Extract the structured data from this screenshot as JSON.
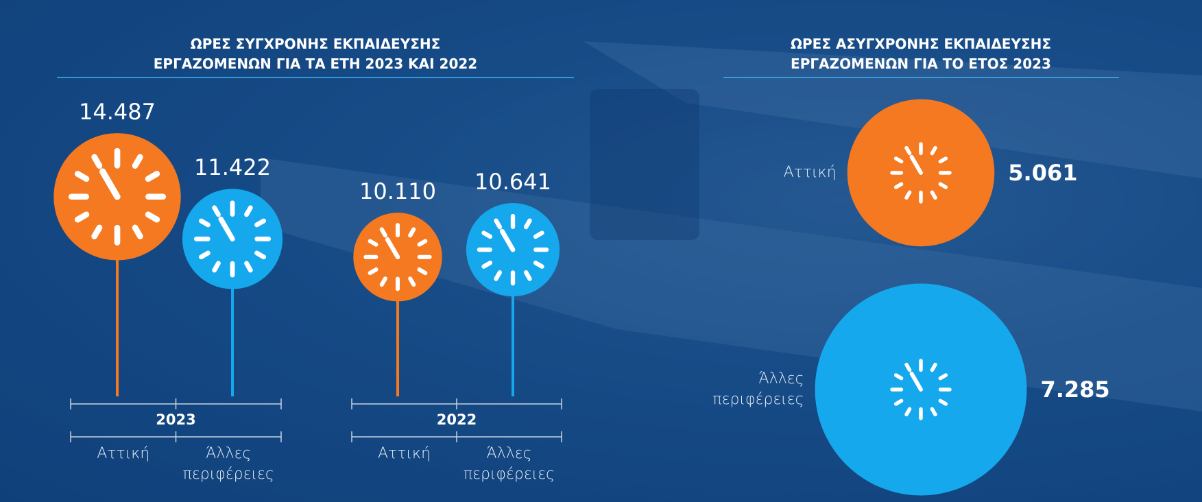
{
  "chart_data": [
    {
      "type": "lollipop",
      "title": [
        "ΩΡΕΣ ΣΥΓΧΡΟΝΗΣ ΕΚΠΑΙΔΕΥΣΗΣ",
        "ΕΡΓΑΖΟΜΕΝΩΝ ΓΙΑ ΤΑ ΕΤΗ 2023 ΚΑΙ 2022"
      ],
      "categories": [
        "2023",
        "2022"
      ],
      "series": [
        {
          "name": "Αττική",
          "color": "#f47920",
          "values": [
            14487,
            10110
          ],
          "value_labels": [
            "14.487",
            "10.110"
          ]
        },
        {
          "name": "Άλλες περιφέρειες",
          "color": "#16a8ec",
          "values": [
            11422,
            10641
          ],
          "value_labels": [
            "11.422",
            "10.641"
          ]
        }
      ]
    },
    {
      "type": "bubble",
      "title": [
        "ΩΡΕΣ ΑΣΥΓΧΡΟΝΗΣ ΕΚΠΑΙΔΕΥΣΗΣ",
        "ΕΡΓΑΖΟΜΕΝΩΝ ΓΙΑ ΤΟ ΕΤΟΣ 2023"
      ],
      "categories": [
        "Αττική",
        "Άλλες περιφέρειες"
      ],
      "values": [
        5061,
        7285
      ],
      "value_labels": [
        "5.061",
        "7.285"
      ],
      "colors": [
        "#f47920",
        "#16a8ec"
      ]
    }
  ]
}
